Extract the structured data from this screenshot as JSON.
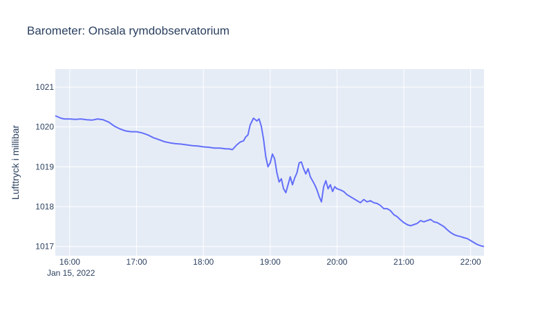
{
  "chart_data": {
    "type": "line",
    "title": "Barometer: Onsala rymdobservatorium",
    "xlabel": "",
    "ylabel": "Lufttryck i millibar",
    "date_label": "Jan 15, 2022",
    "x_tick_labels": [
      "16:00",
      "17:00",
      "18:00",
      "19:00",
      "20:00",
      "21:00",
      "22:00"
    ],
    "y_tick_labels": [
      "1017",
      "1018",
      "1019",
      "1020",
      "1021"
    ],
    "xlim": [
      "15:47",
      "22:12"
    ],
    "ylim": [
      1016.77,
      1021.45
    ],
    "grid": true,
    "legend": "none",
    "colors": {
      "line": "#636efa",
      "plot_bg": "#e5ecf6",
      "grid": "#ffffff",
      "text": "#2a3f5f"
    },
    "series": [
      {
        "x": [
          "15:47",
          "15:52",
          "15:55",
          "16:00",
          "16:05",
          "16:10",
          "16:15",
          "16:20",
          "16:25",
          "16:30",
          "16:35",
          "16:40",
          "16:45",
          "16:50",
          "16:55",
          "17:00",
          "17:05",
          "17:10",
          "17:15",
          "17:20",
          "17:25",
          "17:30",
          "17:35",
          "17:40",
          "17:45",
          "17:50",
          "17:55",
          "18:00",
          "18:05",
          "18:10",
          "18:15",
          "18:20",
          "18:23",
          "18:26",
          "18:30",
          "18:33",
          "18:36",
          "18:38",
          "18:40",
          "18:42",
          "18:45",
          "18:48",
          "18:50",
          "18:52",
          "18:54",
          "18:56",
          "18:58",
          "19:00",
          "19:02",
          "19:04",
          "19:06",
          "19:08",
          "19:10",
          "19:12",
          "19:14",
          "19:16",
          "19:18",
          "19:20",
          "19:22",
          "19:24",
          "19:26",
          "19:28",
          "19:30",
          "19:32",
          "19:34",
          "19:36",
          "19:38",
          "19:40",
          "19:42",
          "19:44",
          "19:46",
          "19:48",
          "19:50",
          "19:52",
          "19:54",
          "19:56",
          "19:58",
          "20:00",
          "20:03",
          "20:06",
          "20:09",
          "20:12",
          "20:15",
          "20:18",
          "20:21",
          "20:24",
          "20:27",
          "20:30",
          "20:33",
          "20:36",
          "20:39",
          "20:42",
          "20:45",
          "20:48",
          "20:51",
          "20:54",
          "20:57",
          "21:00",
          "21:03",
          "21:06",
          "21:09",
          "21:12",
          "21:15",
          "21:18",
          "21:21",
          "21:24",
          "21:27",
          "21:30",
          "21:33",
          "21:36",
          "21:39",
          "21:42",
          "21:45",
          "21:48",
          "21:51",
          "21:54",
          "21:57",
          "22:00",
          "22:03",
          "22:06",
          "22:09",
          "22:12"
        ],
        "values": [
          1020.28,
          1020.22,
          1020.2,
          1020.2,
          1020.19,
          1020.2,
          1020.18,
          1020.17,
          1020.2,
          1020.18,
          1020.12,
          1020.02,
          1019.95,
          1019.9,
          1019.88,
          1019.88,
          1019.85,
          1019.8,
          1019.73,
          1019.68,
          1019.63,
          1019.6,
          1019.58,
          1019.57,
          1019.55,
          1019.53,
          1019.52,
          1019.5,
          1019.49,
          1019.47,
          1019.47,
          1019.45,
          1019.45,
          1019.43,
          1019.55,
          1019.62,
          1019.65,
          1019.75,
          1019.8,
          1020.05,
          1020.22,
          1020.15,
          1020.2,
          1020.02,
          1019.7,
          1019.25,
          1019.0,
          1019.1,
          1019.32,
          1019.2,
          1018.85,
          1018.62,
          1018.7,
          1018.45,
          1018.35,
          1018.55,
          1018.75,
          1018.55,
          1018.72,
          1018.85,
          1019.1,
          1019.12,
          1018.95,
          1018.82,
          1018.95,
          1018.75,
          1018.65,
          1018.55,
          1018.42,
          1018.25,
          1018.12,
          1018.5,
          1018.65,
          1018.45,
          1018.55,
          1018.38,
          1018.5,
          1018.45,
          1018.42,
          1018.38,
          1018.3,
          1018.25,
          1018.2,
          1018.15,
          1018.1,
          1018.18,
          1018.12,
          1018.15,
          1018.1,
          1018.08,
          1018.03,
          1017.95,
          1017.95,
          1017.9,
          1017.8,
          1017.75,
          1017.67,
          1017.6,
          1017.55,
          1017.52,
          1017.55,
          1017.58,
          1017.65,
          1017.62,
          1017.65,
          1017.68,
          1017.62,
          1017.6,
          1017.55,
          1017.5,
          1017.42,
          1017.35,
          1017.3,
          1017.27,
          1017.25,
          1017.22,
          1017.2,
          1017.15,
          1017.1,
          1017.05,
          1017.02,
          1017.0
        ]
      }
    ]
  }
}
